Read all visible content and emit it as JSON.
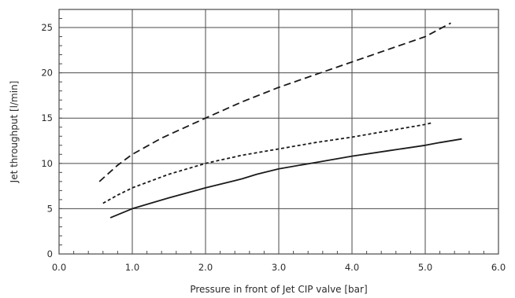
{
  "chart_data": {
    "type": "line",
    "xlabel": "Pressure in front of Jet CIP valve [bar]",
    "ylabel": "Jet throughput [l/min]",
    "xlim": [
      0.0,
      6.0
    ],
    "ylim": [
      0,
      27
    ],
    "x_ticks": [
      "0.0",
      "1.0",
      "2.0",
      "3.0",
      "4.0",
      "5.0",
      "6.0"
    ],
    "y_ticks": [
      "0",
      "5",
      "10",
      "15",
      "20",
      "25"
    ],
    "grid": true,
    "series": [
      {
        "style": "long-dash",
        "color": "#1a1a1a",
        "x": [
          0.55,
          0.8,
          1.0,
          1.4,
          2.0,
          2.5,
          3.0,
          3.5,
          4.0,
          4.5,
          5.0,
          5.35
        ],
        "y": [
          8.0,
          9.8,
          11.0,
          12.8,
          15.0,
          16.8,
          18.4,
          19.8,
          21.2,
          22.6,
          24.0,
          25.5
        ]
      },
      {
        "style": "short-dash",
        "color": "#1a1a1a",
        "x": [
          0.6,
          0.8,
          1.0,
          1.5,
          2.0,
          2.5,
          3.0,
          3.5,
          4.0,
          4.5,
          5.0,
          5.1
        ],
        "y": [
          5.6,
          6.5,
          7.3,
          8.8,
          10.0,
          10.9,
          11.6,
          12.3,
          12.9,
          13.6,
          14.3,
          14.5
        ]
      },
      {
        "style": "solid",
        "color": "#1a1a1a",
        "x": [
          0.7,
          1.0,
          1.5,
          2.0,
          2.4,
          2.5,
          2.7,
          3.0,
          3.5,
          4.0,
          4.5,
          5.0,
          5.2,
          5.5
        ],
        "y": [
          4.0,
          5.0,
          6.2,
          7.3,
          8.1,
          8.3,
          8.8,
          9.4,
          10.1,
          10.8,
          11.4,
          12.0,
          12.3,
          12.7
        ]
      }
    ]
  }
}
